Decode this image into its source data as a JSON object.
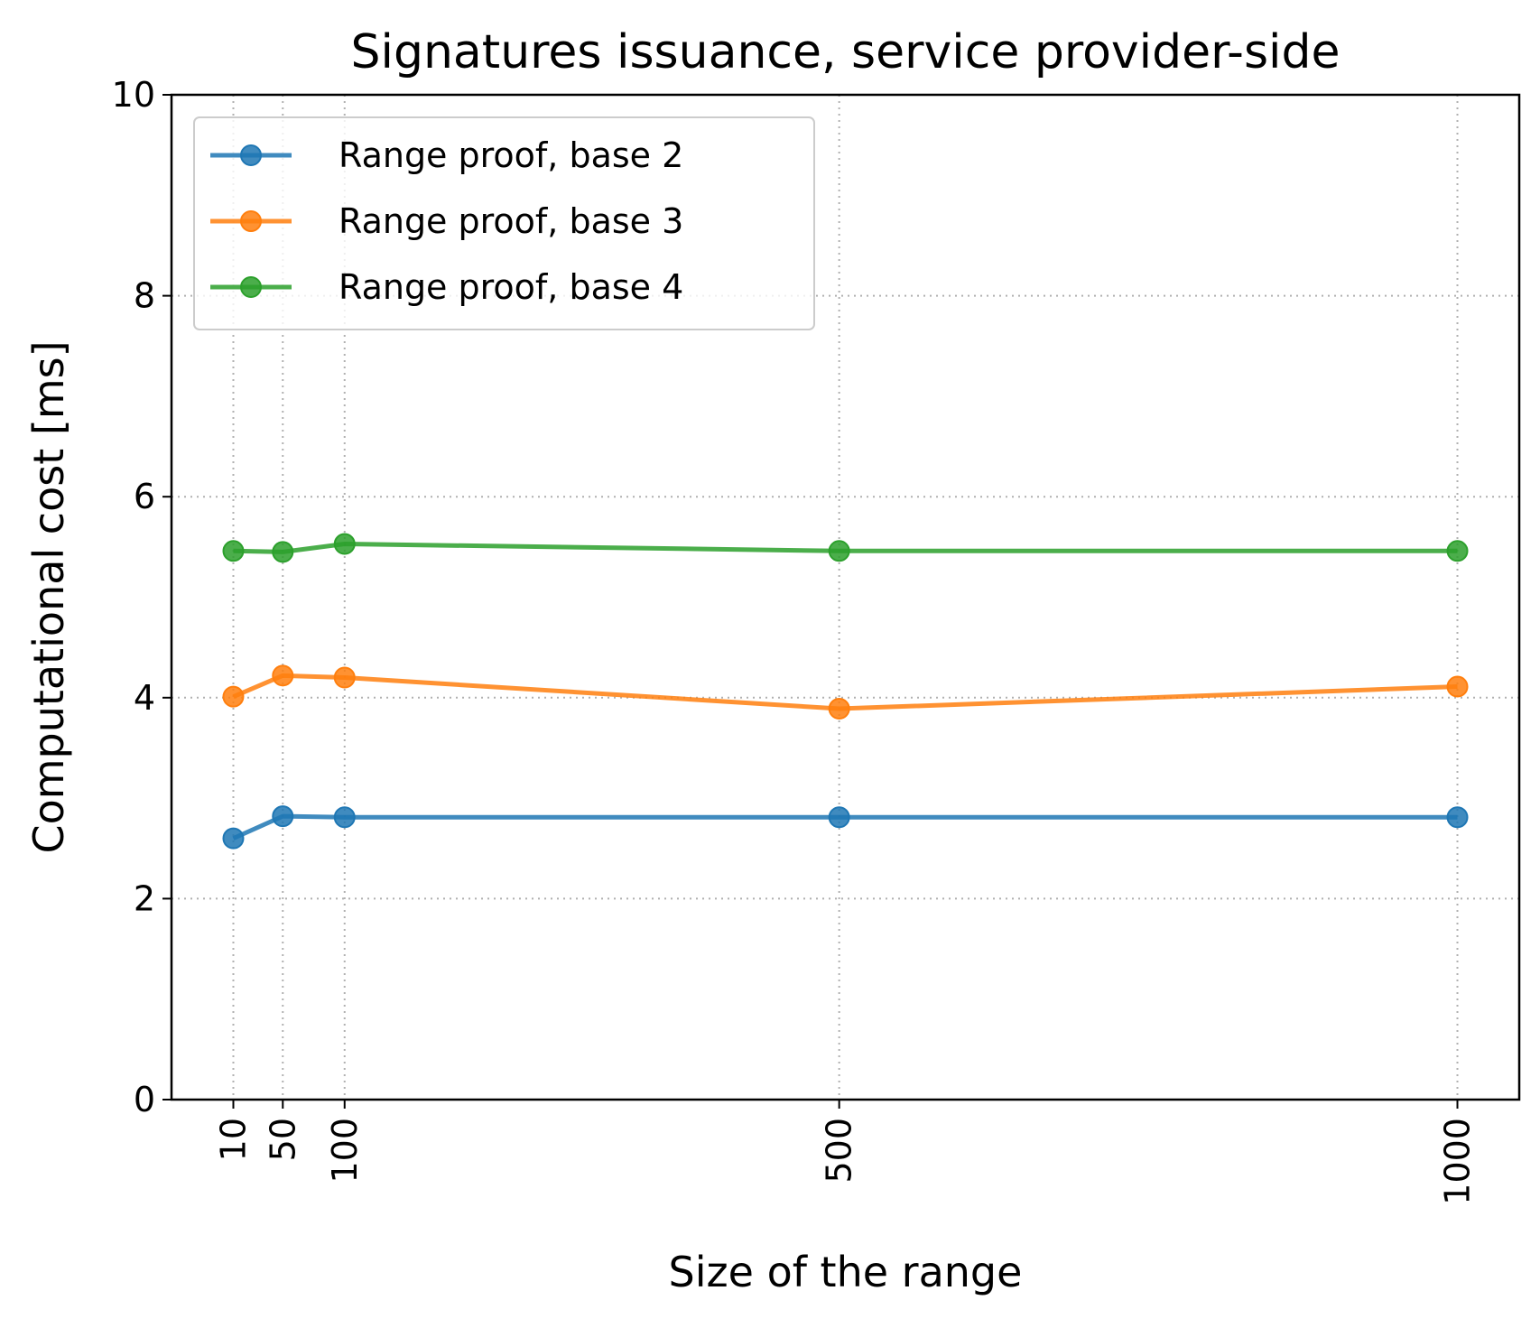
{
  "chart_data": {
    "type": "line",
    "title": "Signatures issuance, service provider-side",
    "xlabel": "Size of the range",
    "ylabel": "Computational cost [ms]",
    "x": [
      10,
      50,
      100,
      500,
      1000
    ],
    "x_tick_labels": [
      "10",
      "50",
      "100",
      "500",
      "1000"
    ],
    "y_ticks": [
      0,
      2,
      4,
      6,
      8,
      10
    ],
    "y_tick_labels": [
      "0",
      "2",
      "4",
      "6",
      "8",
      "10"
    ],
    "xlim": [
      -40,
      1050
    ],
    "ylim": [
      0,
      10
    ],
    "grid": true,
    "legend_position": "top-left",
    "series": [
      {
        "name": "Range proof, base 2",
        "color": "#1f77b4",
        "values": [
          2.6,
          2.82,
          2.81,
          2.81,
          2.81
        ]
      },
      {
        "name": "Range proof, base 3",
        "color": "#ff7f0e",
        "values": [
          4.01,
          4.22,
          4.2,
          3.89,
          4.11
        ]
      },
      {
        "name": "Range proof, base 4",
        "color": "#2ca02c",
        "values": [
          5.46,
          5.45,
          5.53,
          5.46,
          5.46
        ]
      }
    ]
  }
}
